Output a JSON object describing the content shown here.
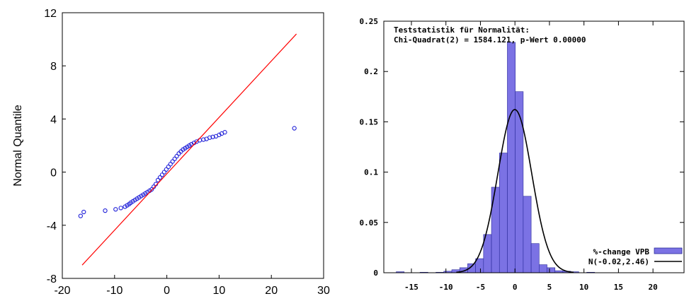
{
  "chart_data": [
    {
      "type": "scatter",
      "ylabel": "Normal Quantile",
      "xlim": [
        -20,
        30
      ],
      "ylim": [
        -8,
        12
      ],
      "xticks": [
        "-20",
        "-10",
        "0",
        "10",
        "20",
        "30"
      ],
      "yticks": [
        "-8",
        "-4",
        "0",
        "4",
        "8",
        "12"
      ],
      "line": {
        "from": [
          -16.2,
          -7.0
        ],
        "to": [
          24.8,
          10.4
        ],
        "color": "#ff0000"
      },
      "point_color": "#1f1fd8",
      "points": [
        [
          -16.5,
          -3.3
        ],
        [
          -15.9,
          -3.0
        ],
        [
          -11.8,
          -2.9
        ],
        [
          -9.8,
          -2.8
        ],
        [
          -8.8,
          -2.7
        ],
        [
          -8.0,
          -2.6
        ],
        [
          -7.6,
          -2.5
        ],
        [
          -7.2,
          -2.4
        ],
        [
          -6.9,
          -2.3
        ],
        [
          -6.5,
          -2.2
        ],
        [
          -6.1,
          -2.1
        ],
        [
          -5.7,
          -2.0
        ],
        [
          -5.3,
          -1.9
        ],
        [
          -4.9,
          -1.8
        ],
        [
          -4.5,
          -1.7
        ],
        [
          -4.1,
          -1.6
        ],
        [
          -3.7,
          -1.5
        ],
        [
          -3.3,
          -1.4
        ],
        [
          -2.9,
          -1.3
        ],
        [
          -2.5,
          -1.1
        ],
        [
          -2.1,
          -0.9
        ],
        [
          -1.7,
          -0.6
        ],
        [
          -1.3,
          -0.4
        ],
        [
          -0.9,
          -0.2
        ],
        [
          -0.5,
          0.0
        ],
        [
          -0.1,
          0.2
        ],
        [
          0.3,
          0.4
        ],
        [
          0.7,
          0.6
        ],
        [
          1.1,
          0.8
        ],
        [
          1.5,
          1.0
        ],
        [
          1.9,
          1.2
        ],
        [
          2.3,
          1.4
        ],
        [
          2.7,
          1.55
        ],
        [
          3.1,
          1.7
        ],
        [
          3.5,
          1.8
        ],
        [
          3.9,
          1.9
        ],
        [
          4.3,
          2.0
        ],
        [
          4.7,
          2.1
        ],
        [
          5.2,
          2.2
        ],
        [
          5.7,
          2.3
        ],
        [
          6.3,
          2.4
        ],
        [
          7.0,
          2.45
        ],
        [
          7.6,
          2.5
        ],
        [
          8.2,
          2.6
        ],
        [
          8.8,
          2.65
        ],
        [
          9.4,
          2.7
        ],
        [
          10.0,
          2.8
        ],
        [
          10.5,
          2.9
        ],
        [
          11.1,
          3.0
        ],
        [
          24.4,
          3.3
        ]
      ]
    },
    {
      "type": "bar",
      "title": "Teststatistik für Normalität:",
      "subtitle": "Chi-Quadrat(2) = 1584.121, p-Wert 0.00000",
      "xlim": [
        -19,
        24.5
      ],
      "ylim": [
        0,
        0.25
      ],
      "xticks": [
        "-15",
        "-10",
        "-5",
        "0",
        "5",
        "10",
        "15",
        "20"
      ],
      "yticks": [
        "0",
        "0.05",
        "0.1",
        "0.15",
        "0.2",
        "0.25"
      ],
      "bin_width": 1.15,
      "bin_starts": [
        -17.2,
        -13.75,
        -11.45,
        -10.3,
        -9.15,
        -8.0,
        -6.85,
        -5.7,
        -4.55,
        -3.4,
        -2.25,
        -1.1,
        0.05,
        1.2,
        2.35,
        3.5,
        4.65,
        5.8,
        6.95,
        8.1,
        10.4
      ],
      "values": [
        0.001,
        0.0005,
        0.0005,
        0.0015,
        0.003,
        0.005,
        0.009,
        0.014,
        0.038,
        0.085,
        0.119,
        0.229,
        0.18,
        0.076,
        0.029,
        0.008,
        0.005,
        0.002,
        0.0015,
        0.001,
        0.0005
      ],
      "bar_color": "#7b72e4",
      "bar_edge": "#2a2a9a",
      "normal_curve": {
        "mean": -0.02,
        "sd": 2.46
      },
      "legend": [
        {
          "name": "%-change VPB",
          "color": "#7b72e4"
        },
        {
          "name": "N(-0.02,2.46)",
          "color": "#000000"
        }
      ],
      "legend_position": "bottom-right"
    }
  ]
}
